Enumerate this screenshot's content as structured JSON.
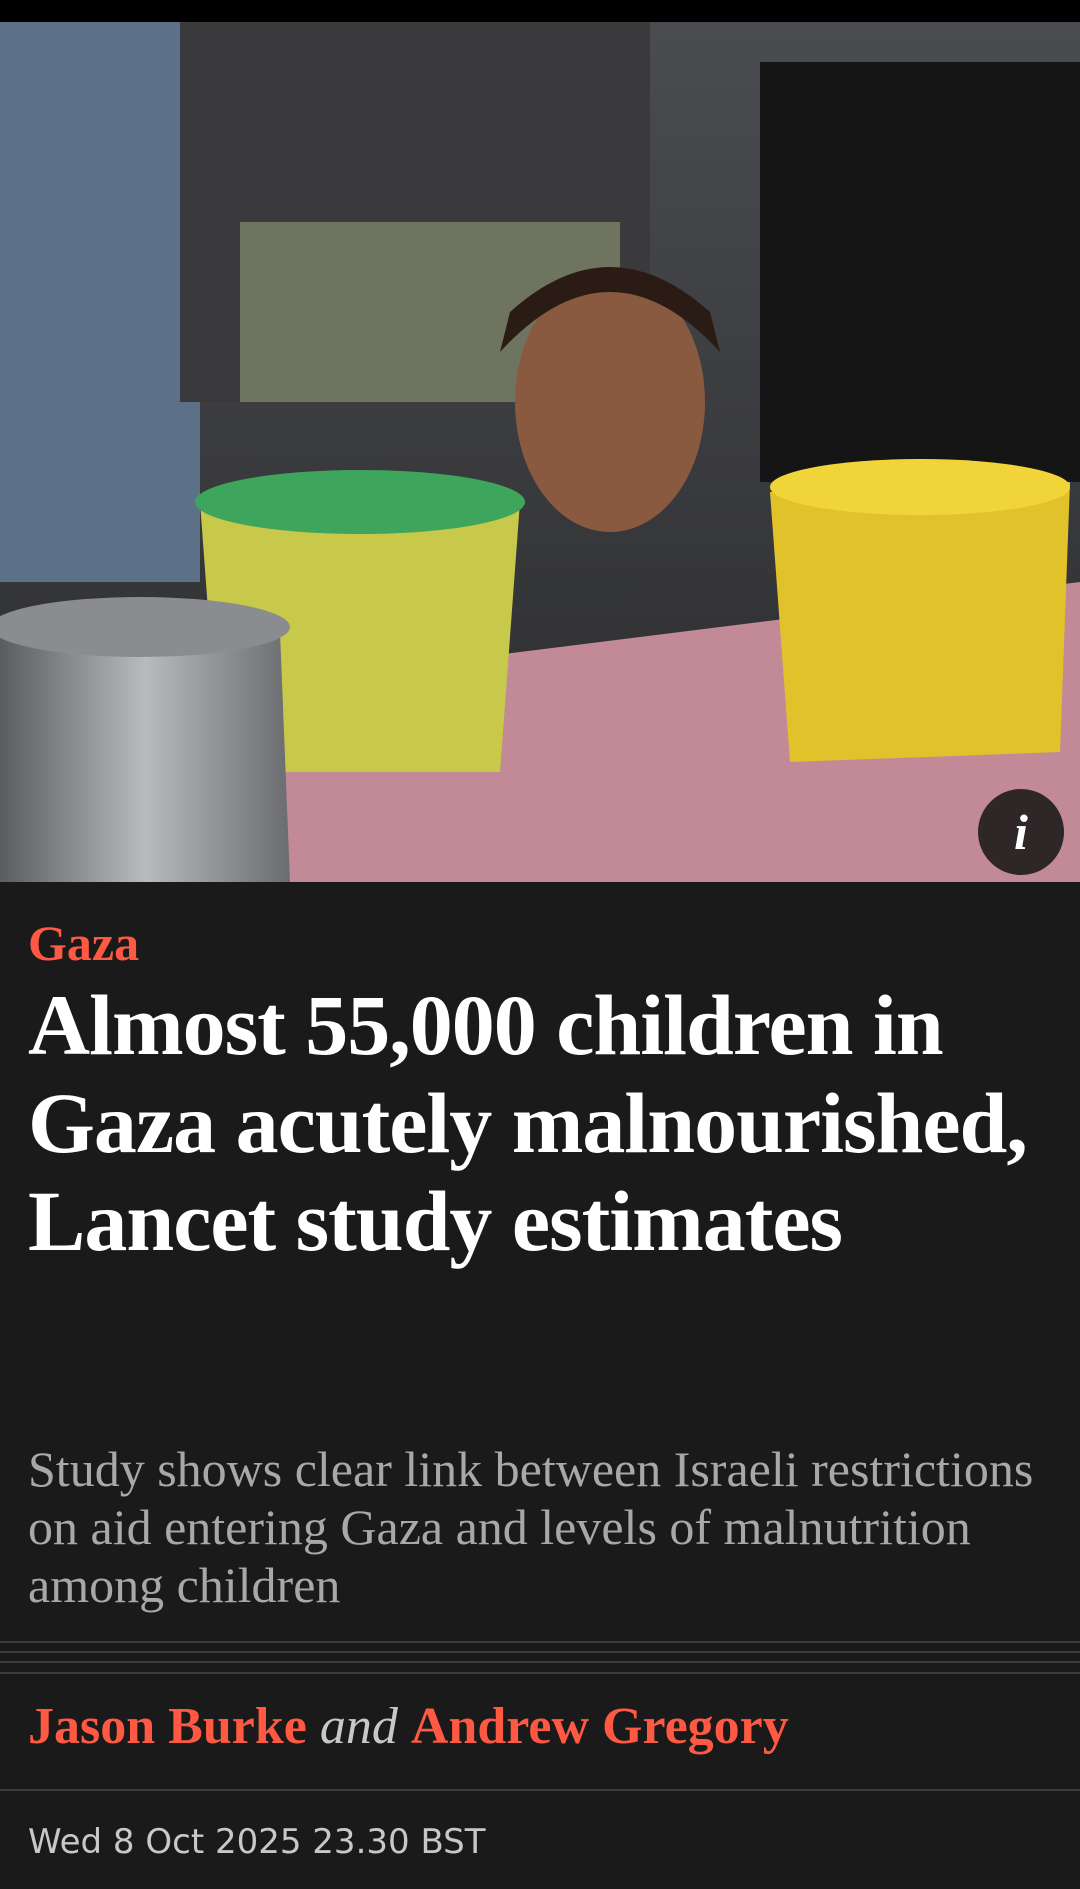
{
  "article": {
    "photo": {
      "info_button": {
        "label": "i"
      }
    },
    "section": "Gaza",
    "headline": "Almost 55,000 children in Gaza acutely malnourished, Lancet study estimates",
    "standfirst": "Study shows clear link between Israeli restrictions on aid entering Gaza and levels of malnutrition among children",
    "byline": {
      "authors": [
        "Jason Burke",
        "Andrew Gregory"
      ],
      "conjunction": "and"
    },
    "date": "Wed 8 Oct 2025 23.30 BST"
  }
}
